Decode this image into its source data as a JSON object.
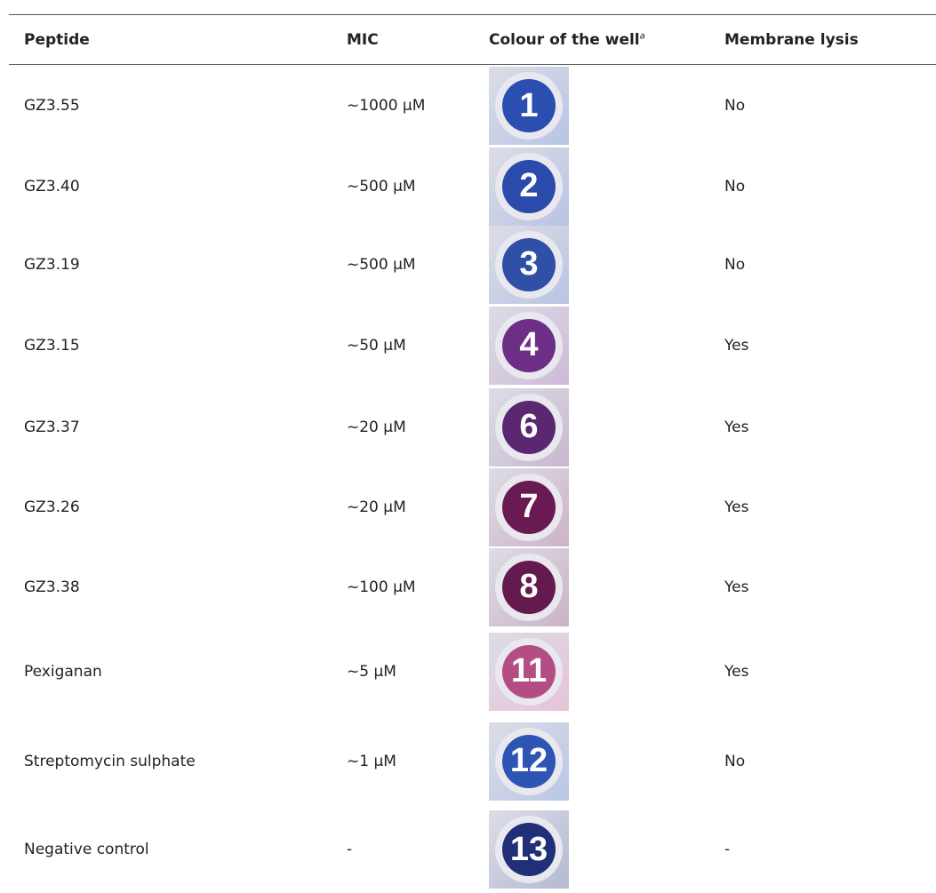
{
  "table": {
    "header": [
      {
        "text": "Peptide"
      },
      {
        "text": "MIC"
      },
      {
        "text": "Colour of the well",
        "note": "a"
      },
      {
        "text": "Membrane lysis"
      }
    ],
    "rows": [
      {
        "peptide": "GZ3.55",
        "mic": "~1000 µM",
        "well": "1",
        "well_color": "#2a4fb0",
        "lysis": "No"
      },
      {
        "peptide": "GZ3.40",
        "mic": "~500 µM",
        "well": "2",
        "well_color": "#2b4bab",
        "lysis": "No"
      },
      {
        "peptide": "GZ3.19",
        "mic": "~500 µM",
        "well": "3",
        "well_color": "#3050a8",
        "lysis": "No"
      },
      {
        "peptide": "GZ3.15",
        "mic": "~50 µM",
        "well": "4",
        "well_color": "#6d2f86",
        "lysis": "Yes"
      },
      {
        "peptide": "GZ3.37",
        "mic": "~20 µM",
        "well": "6",
        "well_color": "#5b2770",
        "lysis": "Yes"
      },
      {
        "peptide": "GZ3.26",
        "mic": "~20 µM",
        "well": "7",
        "well_color": "#6a1a52",
        "lysis": "Yes"
      },
      {
        "peptide": "GZ3.38",
        "mic": "~100 µM",
        "well": "8",
        "well_color": "#651a4e",
        "lysis": "Yes"
      },
      {
        "peptide": "Pexiganan",
        "mic": "~5 µM",
        "well": "11",
        "well_color": "#b44d86",
        "lysis": "Yes"
      },
      {
        "peptide": "Streptomycin sulphate",
        "mic": "~1 µM",
        "well": "12",
        "well_color": "#2e55b4",
        "lysis": "No"
      },
      {
        "peptide": "Negative control",
        "mic": "-",
        "well": "13",
        "well_color": "#1f2f78",
        "lysis": "-"
      }
    ]
  }
}
